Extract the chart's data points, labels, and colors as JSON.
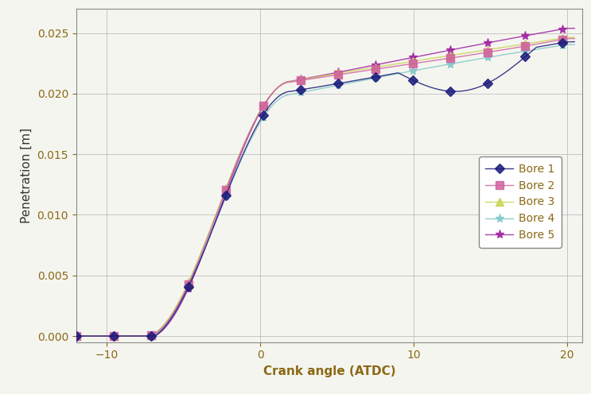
{
  "title": "",
  "xlabel": "Crank angle (ATDC)",
  "ylabel": "Penetration [m]",
  "xlim": [
    -12,
    21
  ],
  "ylim": [
    -0.0005,
    0.027
  ],
  "xticks": [
    -10,
    0,
    10,
    20
  ],
  "yticks": [
    0,
    0.005,
    0.01,
    0.015,
    0.02,
    0.025
  ],
  "series": {
    "Bore 1": {
      "color": "#1A1A7A",
      "marker": "D",
      "markersize": 6,
      "lw": 1.0
    },
    "Bore 2": {
      "color": "#D060A0",
      "marker": "s",
      "markersize": 7,
      "lw": 1.0
    },
    "Bore 3": {
      "color": "#C8D44E",
      "marker": "^",
      "markersize": 7,
      "lw": 1.0
    },
    "Bore 4": {
      "color": "#80C8C8",
      "marker": "*",
      "markersize": 8,
      "lw": 1.0
    },
    "Bore 5": {
      "color": "#A020A0",
      "marker": "*",
      "markersize": 8,
      "lw": 1.0
    }
  },
  "background_color": "#f5f5f0",
  "grid_color": "#b0b0b0",
  "label_color": "#8B6914",
  "tick_color": "#333333"
}
